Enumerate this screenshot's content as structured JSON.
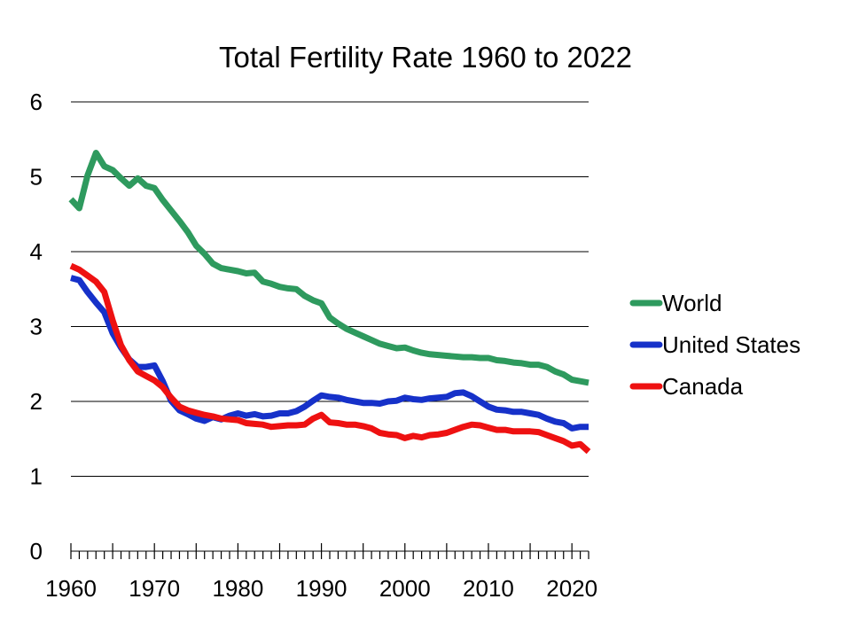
{
  "chart_data": {
    "type": "line",
    "title": "Total Fertility Rate 1960 to 2022",
    "xlabel": "",
    "ylabel": "",
    "xlim": [
      1960,
      2022
    ],
    "ylim": [
      0,
      6
    ],
    "x_ticks": [
      1960,
      1970,
      1980,
      1990,
      2000,
      2010,
      2020
    ],
    "y_ticks": [
      0,
      1,
      2,
      3,
      4,
      5,
      6
    ],
    "grid": "horizontal",
    "legend": "right",
    "x": [
      1960,
      1961,
      1962,
      1963,
      1964,
      1965,
      1966,
      1967,
      1968,
      1969,
      1970,
      1971,
      1972,
      1973,
      1974,
      1975,
      1976,
      1977,
      1978,
      1979,
      1980,
      1981,
      1982,
      1983,
      1984,
      1985,
      1986,
      1987,
      1988,
      1989,
      1990,
      1991,
      1992,
      1993,
      1994,
      1995,
      1996,
      1997,
      1998,
      1999,
      2000,
      2001,
      2002,
      2003,
      2004,
      2005,
      2006,
      2007,
      2008,
      2009,
      2010,
      2011,
      2012,
      2013,
      2014,
      2015,
      2016,
      2017,
      2018,
      2019,
      2020,
      2021,
      2022
    ],
    "series": [
      {
        "name": "World",
        "color": "#2e9a5e",
        "values": [
          4.7,
          4.58,
          5.02,
          5.32,
          5.14,
          5.09,
          4.98,
          4.88,
          4.98,
          4.88,
          4.85,
          4.69,
          4.55,
          4.41,
          4.26,
          4.08,
          3.97,
          3.84,
          3.78,
          3.76,
          3.74,
          3.71,
          3.72,
          3.6,
          3.57,
          3.53,
          3.51,
          3.5,
          3.41,
          3.35,
          3.31,
          3.12,
          3.04,
          2.97,
          2.92,
          2.87,
          2.82,
          2.77,
          2.74,
          2.71,
          2.72,
          2.68,
          2.65,
          2.63,
          2.62,
          2.61,
          2.6,
          2.59,
          2.59,
          2.58,
          2.58,
          2.55,
          2.54,
          2.52,
          2.51,
          2.49,
          2.49,
          2.46,
          2.4,
          2.36,
          2.29,
          2.27,
          2.25
        ]
      },
      {
        "name": "United States",
        "color": "#1631c9",
        "values": [
          3.65,
          3.62,
          3.46,
          3.32,
          3.19,
          2.91,
          2.72,
          2.56,
          2.46,
          2.46,
          2.48,
          2.27,
          2.01,
          1.88,
          1.83,
          1.77,
          1.74,
          1.79,
          1.76,
          1.81,
          1.84,
          1.81,
          1.83,
          1.8,
          1.81,
          1.84,
          1.84,
          1.87,
          1.93,
          2.01,
          2.08,
          2.06,
          2.05,
          2.02,
          2.0,
          1.98,
          1.98,
          1.97,
          2.0,
          2.01,
          2.05,
          2.03,
          2.02,
          2.04,
          2.05,
          2.06,
          2.11,
          2.12,
          2.07,
          2.0,
          1.93,
          1.89,
          1.88,
          1.86,
          1.86,
          1.84,
          1.82,
          1.77,
          1.73,
          1.71,
          1.64,
          1.66,
          1.66
        ]
      },
      {
        "name": "Canada",
        "color": "#ee1111",
        "values": [
          3.81,
          3.76,
          3.68,
          3.6,
          3.46,
          3.08,
          2.75,
          2.55,
          2.4,
          2.34,
          2.28,
          2.19,
          2.05,
          1.93,
          1.88,
          1.85,
          1.82,
          1.8,
          1.77,
          1.76,
          1.75,
          1.71,
          1.7,
          1.69,
          1.66,
          1.67,
          1.68,
          1.68,
          1.69,
          1.77,
          1.82,
          1.72,
          1.71,
          1.69,
          1.69,
          1.67,
          1.64,
          1.58,
          1.56,
          1.55,
          1.51,
          1.54,
          1.52,
          1.55,
          1.56,
          1.58,
          1.62,
          1.66,
          1.69,
          1.68,
          1.65,
          1.62,
          1.62,
          1.6,
          1.6,
          1.6,
          1.59,
          1.55,
          1.51,
          1.47,
          1.41,
          1.43,
          1.33
        ]
      }
    ]
  }
}
